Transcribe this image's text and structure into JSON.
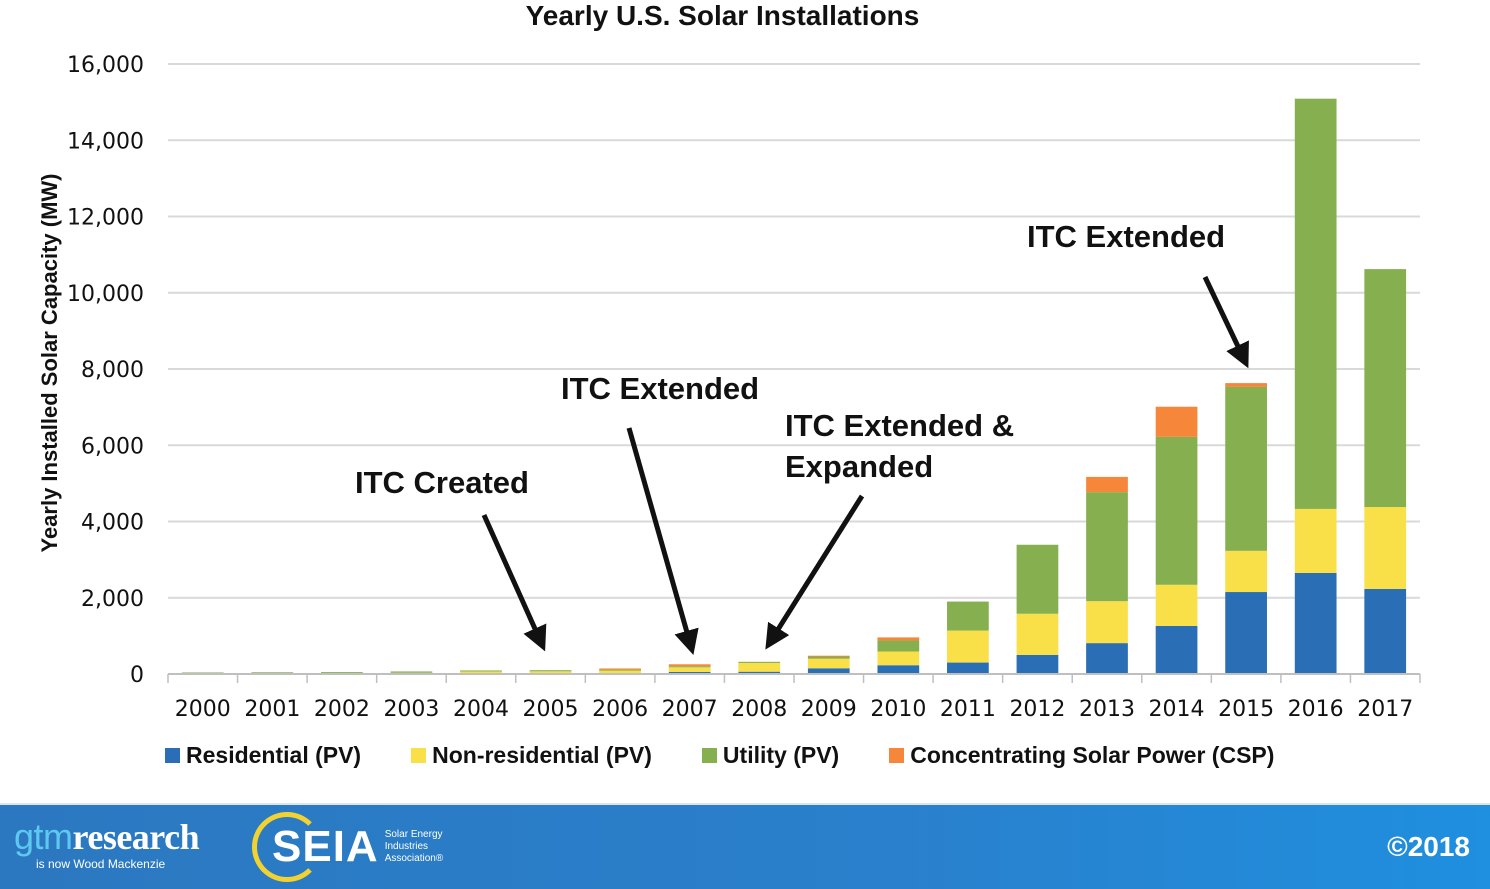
{
  "chart_data": {
    "type": "bar",
    "stacked": true,
    "title": "Yearly U.S. Solar Installations",
    "xlabel": "",
    "ylabel": "Yearly Installed Solar Capacity (MW)",
    "ylim": [
      0,
      16000
    ],
    "yticks": [
      0,
      2000,
      4000,
      6000,
      8000,
      10000,
      12000,
      14000,
      16000
    ],
    "ytick_labels": [
      "0",
      "2,000",
      "4,000",
      "6,000",
      "8,000",
      "10,000",
      "12,000",
      "14,000",
      "16,000"
    ],
    "grid": true,
    "legend_position": "bottom",
    "categories": [
      "2000",
      "2001",
      "2002",
      "2003",
      "2004",
      "2005",
      "2006",
      "2007",
      "2008",
      "2009",
      "2010",
      "2011",
      "2012",
      "2013",
      "2014",
      "2015",
      "2016",
      "2017"
    ],
    "series": [
      {
        "name": "Residential (PV)",
        "color": "#2a6fb5",
        "values": [
          5,
          8,
          10,
          12,
          18,
          20,
          25,
          55,
          60,
          150,
          230,
          300,
          500,
          810,
          1260,
          2150,
          2650,
          2230
        ]
      },
      {
        "name": "Non-residential (PV)",
        "color": "#f9df48",
        "values": [
          10,
          12,
          15,
          20,
          55,
          50,
          80,
          120,
          230,
          250,
          360,
          840,
          1080,
          1100,
          1080,
          1080,
          1680,
          2150
        ]
      },
      {
        "name": "Utility (PV)",
        "color": "#86b04f",
        "values": [
          25,
          25,
          25,
          35,
          20,
          30,
          10,
          30,
          30,
          60,
          290,
          760,
          1810,
          2860,
          3880,
          4300,
          10760,
          6240
        ]
      },
      {
        "name": "Concentrating Solar Power (CSP)",
        "color": "#f5863a",
        "values": [
          0,
          0,
          0,
          0,
          0,
          0,
          30,
          50,
          0,
          20,
          80,
          0,
          0,
          400,
          790,
          100,
          0,
          0
        ]
      }
    ],
    "annotations": [
      {
        "text": "ITC Created",
        "points_to": "2005"
      },
      {
        "text": "ITC Extended",
        "points_to": "2007"
      },
      {
        "text": "ITC Extended & Expanded",
        "points_to": "2008"
      },
      {
        "text": "ITC Extended",
        "points_to": "2015"
      }
    ]
  },
  "annotations": {
    "itc_created": "ITC Created",
    "itc_extended_2006": "ITC Extended",
    "itc_expanded_line1": "ITC Extended &",
    "itc_expanded_line2": "Expanded",
    "itc_extended_2015": "ITC Extended"
  },
  "footer": {
    "gtm_light": "gtm",
    "gtm_bold": "research",
    "gtm_sub": "is now Wood Mackenzie",
    "seia_word": "SEIA",
    "seia_desc_1": "Solar Energy",
    "seia_desc_2": "Industries",
    "seia_desc_3": "Association®",
    "copyright": "©2018"
  }
}
